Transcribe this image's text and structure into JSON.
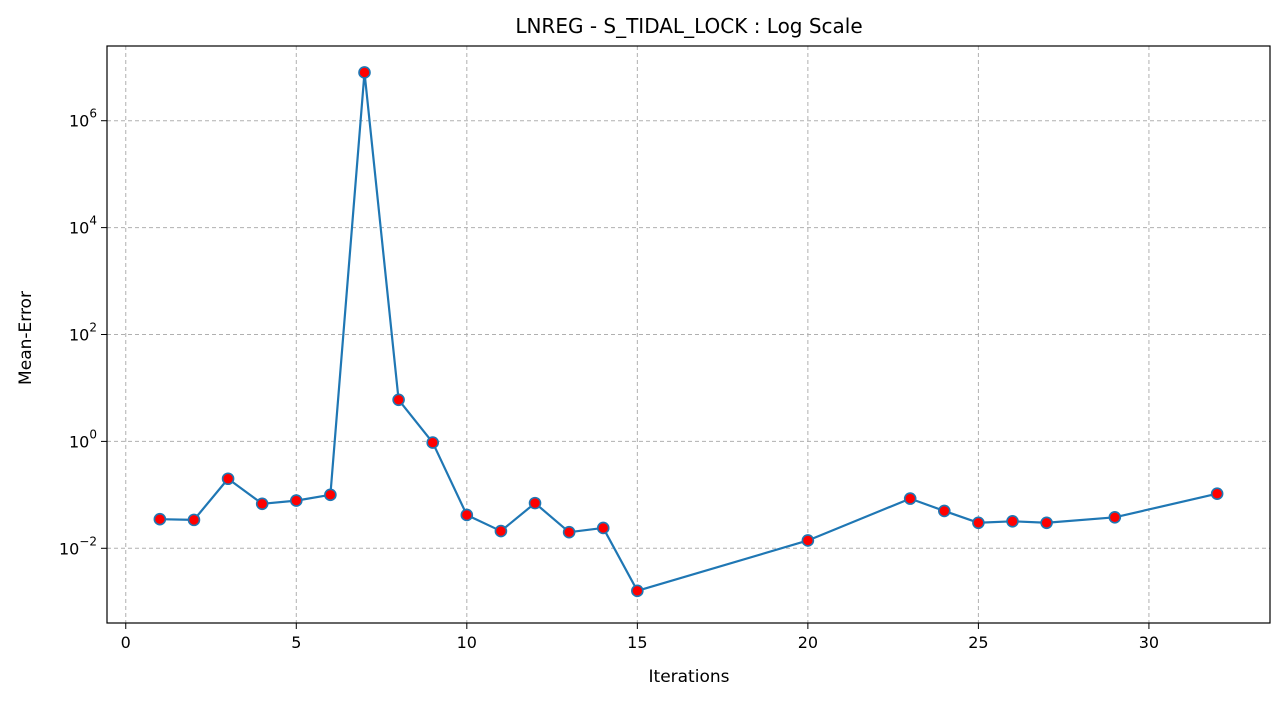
{
  "chart_data": {
    "type": "line",
    "title": "LNREG - S_TIDAL_LOCK : Log Scale",
    "xlabel": "Iterations",
    "ylabel": "Mean-Error",
    "yscale": "log",
    "xlim": [
      -0.55,
      33.55
    ],
    "ylim": [
      0.0004,
      25000000
    ],
    "xticks": [
      0,
      5,
      10,
      15,
      20,
      25,
      30
    ],
    "yticks": [
      {
        "value": 0.01,
        "base": "10",
        "exp": "−2"
      },
      {
        "value": 1,
        "base": "10",
        "exp": "0"
      },
      {
        "value": 100,
        "base": "10",
        "exp": "2"
      },
      {
        "value": 10000,
        "base": "10",
        "exp": "4"
      },
      {
        "value": 1000000,
        "base": "10",
        "exp": "6"
      }
    ],
    "grid": true,
    "line_color": "#1f77b4",
    "marker_color": "#ff0000",
    "marker_edge_color": "#1f77b4",
    "series": [
      {
        "x": [
          1,
          2,
          3,
          4,
          5,
          6,
          7,
          8,
          9,
          10,
          11,
          12,
          13,
          14,
          15,
          20,
          23,
          24,
          25,
          26,
          27,
          29,
          32
        ],
        "y": [
          0.035,
          0.034,
          0.2,
          0.068,
          0.078,
          0.1,
          8000000,
          6,
          0.95,
          0.042,
          0.021,
          0.07,
          0.02,
          0.024,
          0.0016,
          0.014,
          0.085,
          0.05,
          0.03,
          0.032,
          0.03,
          0.038,
          0.105
        ]
      }
    ]
  }
}
